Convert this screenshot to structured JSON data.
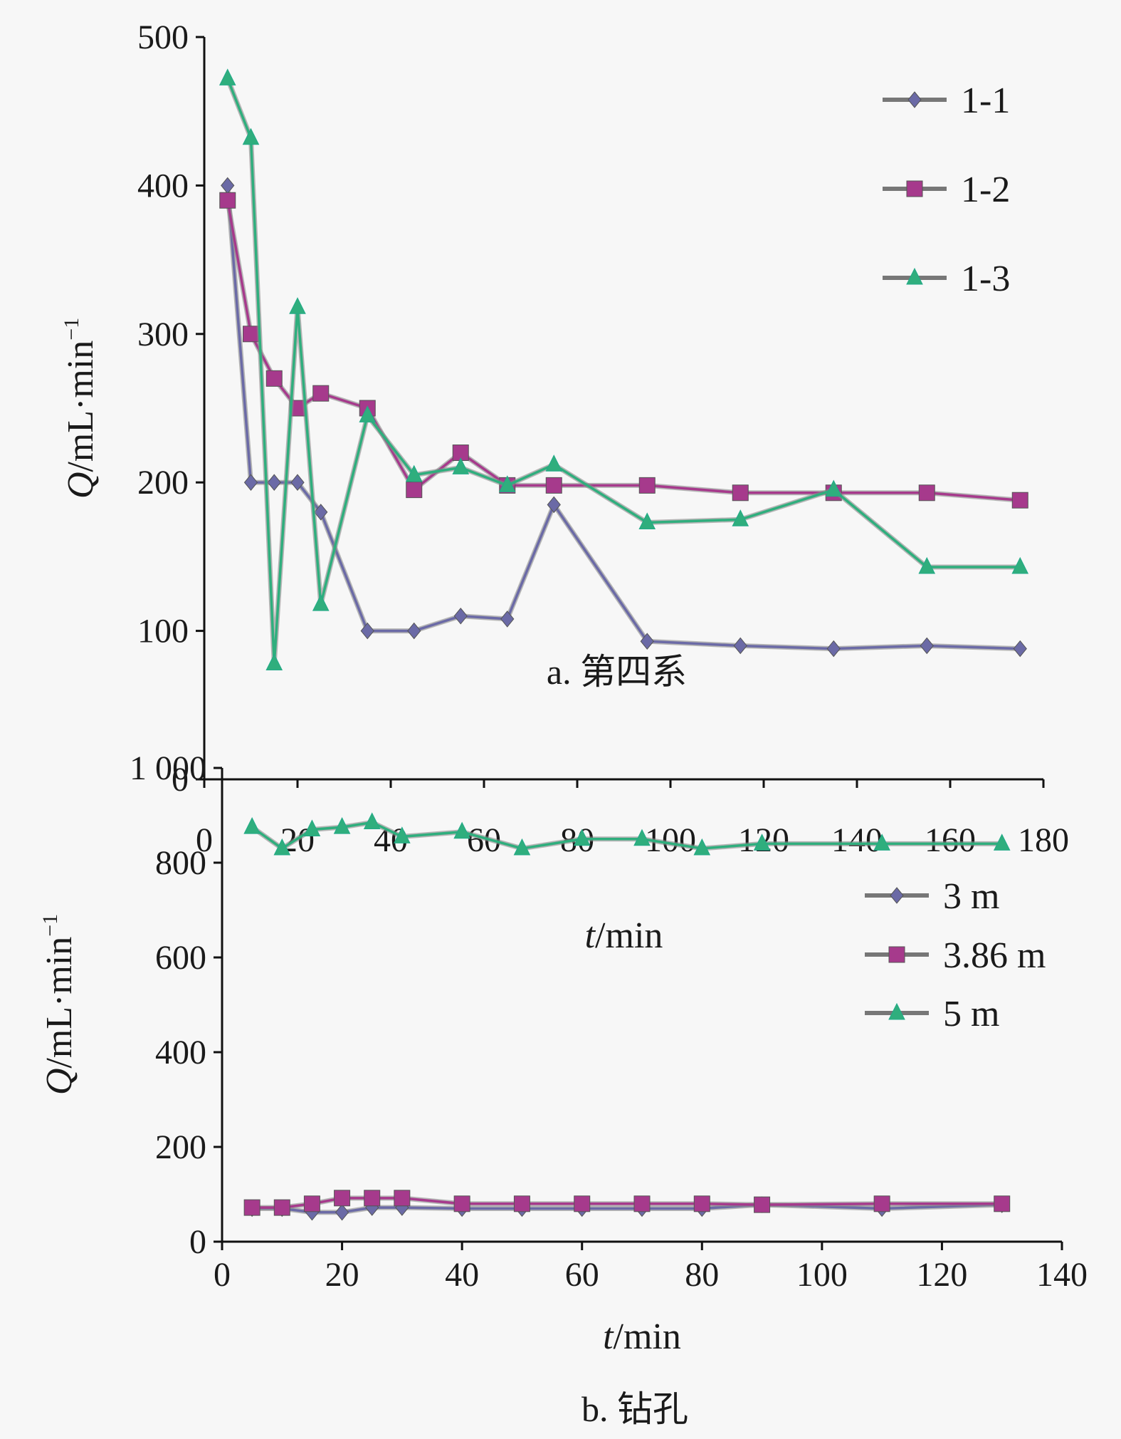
{
  "chart_data": [
    {
      "type": "line",
      "caption": "a. 第四系",
      "xlabel_italic": "t",
      "xlabel_rest": "/min",
      "ylabel_italic": "Q",
      "ylabel_rest": "/mL·min",
      "ylabel_sup": "−1",
      "xlim": [
        0,
        180
      ],
      "ylim": [
        0,
        500
      ],
      "xticks": [
        0,
        20,
        40,
        60,
        80,
        100,
        120,
        140,
        160,
        180
      ],
      "yticks": [
        0,
        100,
        200,
        300,
        400,
        500
      ],
      "ytick_labels": [
        "0",
        "100",
        "200",
        "300",
        "400",
        "500"
      ],
      "legend_position": "top-right",
      "grid": false,
      "series": [
        {
          "name": "1-1",
          "marker": "diamond",
          "color": "#6b6aa6",
          "x": [
            5,
            10,
            15,
            20,
            25,
            35,
            45,
            55,
            65,
            75,
            95,
            115,
            135,
            155,
            175
          ],
          "y": [
            400,
            200,
            200,
            200,
            180,
            100,
            100,
            110,
            108,
            185,
            93,
            90,
            88,
            90,
            88
          ]
        },
        {
          "name": "1-2",
          "marker": "square",
          "color": "#a63a8c",
          "x": [
            5,
            10,
            15,
            20,
            25,
            35,
            45,
            55,
            65,
            75,
            95,
            115,
            135,
            155,
            175
          ],
          "y": [
            390,
            300,
            270,
            250,
            260,
            250,
            195,
            220,
            198,
            198,
            198,
            193,
            193,
            193,
            188
          ]
        },
        {
          "name": "1-3",
          "marker": "triangle",
          "color": "#2fae7d",
          "x": [
            5,
            10,
            15,
            20,
            25,
            35,
            45,
            55,
            65,
            75,
            95,
            115,
            135,
            155,
            175
          ],
          "y": [
            472,
            432,
            78,
            318,
            118,
            245,
            205,
            210,
            198,
            212,
            173,
            175,
            195,
            143,
            143
          ]
        }
      ]
    },
    {
      "type": "line",
      "caption": "b. 钻孔",
      "xlabel_italic": "t",
      "xlabel_rest": "/min",
      "ylabel_italic": "Q",
      "ylabel_rest": "/mL·min",
      "ylabel_sup": "−1",
      "xlim": [
        0,
        140
      ],
      "ylim": [
        0,
        1000
      ],
      "xticks": [
        0,
        20,
        40,
        60,
        80,
        100,
        120,
        140
      ],
      "yticks": [
        0,
        200,
        400,
        600,
        800,
        1000
      ],
      "ytick_labels": [
        "0",
        "200",
        "400",
        "600",
        "800",
        "1 000"
      ],
      "legend_position": "right",
      "grid": false,
      "series": [
        {
          "name": "3 m",
          "marker": "diamond",
          "color": "#6b6aa6",
          "x": [
            5,
            10,
            15,
            20,
            25,
            30,
            40,
            50,
            60,
            70,
            80,
            90,
            110,
            130
          ],
          "y": [
            70,
            70,
            62,
            62,
            72,
            72,
            70,
            70,
            70,
            70,
            70,
            78,
            70,
            78
          ]
        },
        {
          "name": "3.86 m",
          "marker": "square",
          "color": "#a63a8c",
          "x": [
            5,
            10,
            15,
            20,
            25,
            30,
            40,
            50,
            60,
            70,
            80,
            90,
            110,
            130
          ],
          "y": [
            72,
            72,
            80,
            92,
            92,
            92,
            80,
            80,
            80,
            80,
            80,
            78,
            80,
            80
          ]
        },
        {
          "name": "5 m",
          "marker": "triangle",
          "color": "#2fae7d",
          "x": [
            5,
            10,
            15,
            20,
            25,
            30,
            40,
            50,
            60,
            70,
            80,
            90,
            110,
            130
          ],
          "y": [
            875,
            830,
            870,
            875,
            885,
            855,
            865,
            830,
            850,
            850,
            830,
            840,
            840,
            840
          ]
        }
      ]
    }
  ]
}
